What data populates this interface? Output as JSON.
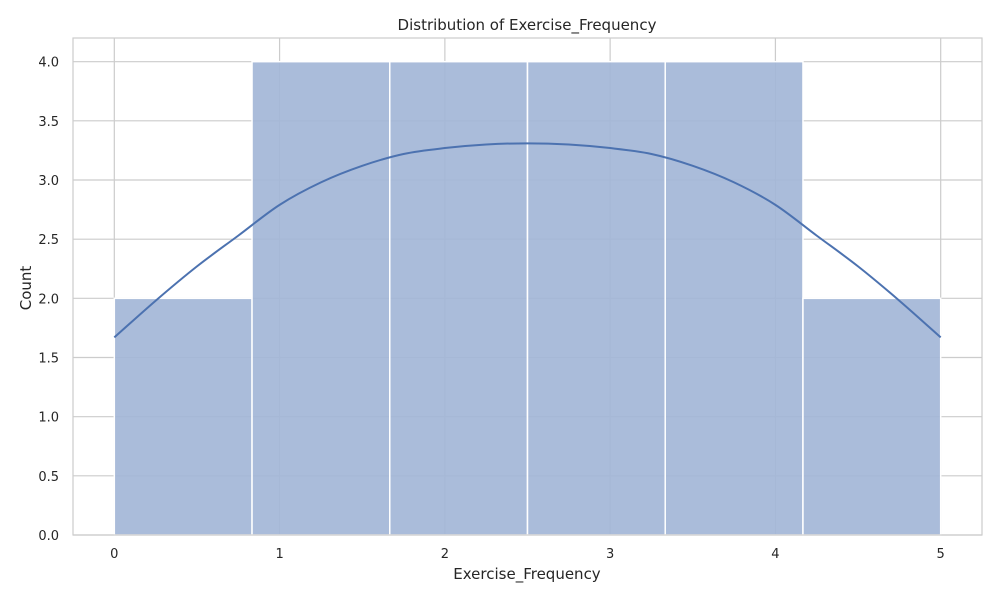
{
  "chart_data": {
    "type": "bar",
    "title": "Distribution of Exercise_Frequency",
    "xlabel": "Exercise_Frequency",
    "ylabel": "Count",
    "xlim": [
      -0.25,
      5.25
    ],
    "ylim": [
      0,
      4.2
    ],
    "xticks": [
      0,
      1,
      2,
      3,
      4,
      5
    ],
    "xtick_labels": [
      "0",
      "1",
      "2",
      "3",
      "4",
      "5"
    ],
    "yticks": [
      0,
      0.5,
      1.0,
      1.5,
      2.0,
      2.5,
      3.0,
      3.5,
      4.0
    ],
    "ytick_labels": [
      "0.0",
      "0.5",
      "1.0",
      "1.5",
      "2.0",
      "2.5",
      "3.0",
      "3.5",
      "4.0"
    ],
    "bins": [
      {
        "x0": 0.0,
        "x1": 0.8333,
        "count": 2
      },
      {
        "x0": 0.8333,
        "x1": 1.6667,
        "count": 4
      },
      {
        "x0": 1.6667,
        "x1": 2.5,
        "count": 4
      },
      {
        "x0": 2.5,
        "x1": 3.3333,
        "count": 4
      },
      {
        "x0": 3.3333,
        "x1": 4.1667,
        "count": 4
      },
      {
        "x0": 4.1667,
        "x1": 5.0,
        "count": 2
      }
    ],
    "kde": {
      "x": [
        0,
        0.25,
        0.5,
        0.75,
        1.0,
        1.25,
        1.5,
        1.75,
        2.0,
        2.25,
        2.5,
        2.75,
        3.0,
        3.25,
        3.5,
        3.75,
        4.0,
        4.25,
        4.5,
        4.75,
        5.0
      ],
      "y": [
        1.67,
        1.98,
        2.27,
        2.53,
        2.79,
        2.98,
        3.12,
        3.22,
        3.27,
        3.3,
        3.31,
        3.3,
        3.27,
        3.22,
        3.12,
        2.98,
        2.79,
        2.53,
        2.27,
        1.98,
        1.67
      ]
    },
    "grid": true,
    "colors": {
      "bar_fill": "#a3b6d7",
      "kde_line": "#4c72b0",
      "grid": "#cccccc",
      "spine": "#cccccc",
      "bar_edge": "#ffffff"
    }
  }
}
